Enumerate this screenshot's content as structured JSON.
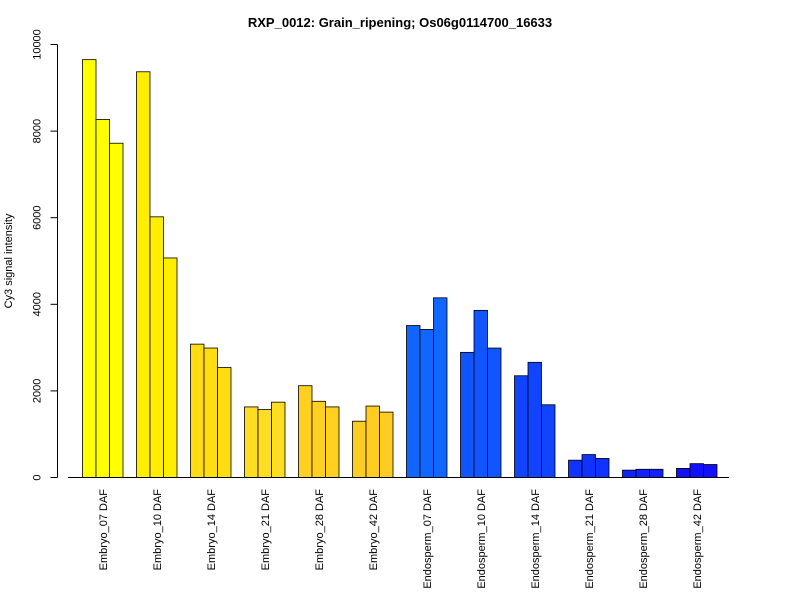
{
  "chart_data": {
    "type": "bar",
    "title": "RXP_0012: Grain_ripening; Os06g0114700_16633",
    "xlabel": "",
    "ylabel": "Cy3 signal intensity",
    "ylim": [
      0,
      10000
    ],
    "yticks": [
      0,
      2000,
      4000,
      6000,
      8000,
      10000
    ],
    "grid": false,
    "legend": "none",
    "categories": [
      "Embryo_07 DAF",
      "Embryo_10 DAF",
      "Embryo_14 DAF",
      "Embryo_21 DAF",
      "Embryo_28 DAF",
      "Embryo_42 DAF",
      "Endosperm_07 DAF",
      "Endosperm_10 DAF",
      "Endosperm_14 DAF",
      "Endosperm_21 DAF",
      "Endosperm_28 DAF",
      "Endosperm_42 DAF"
    ],
    "replicates": [
      [
        9650,
        8270,
        7720
      ],
      [
        9370,
        6020,
        5070
      ],
      [
        3080,
        2990,
        2540
      ],
      [
        1630,
        1570,
        1740
      ],
      [
        2120,
        1760,
        1630
      ],
      [
        1300,
        1650,
        1510
      ],
      [
        3510,
        3420,
        4150
      ],
      [
        2890,
        3860,
        2990
      ],
      [
        2350,
        2660,
        1680
      ],
      [
        400,
        530,
        440
      ],
      [
        170,
        190,
        190
      ],
      [
        210,
        320,
        300
      ]
    ],
    "colors": [
      "#FFFF00",
      "#FFEE00",
      "#FFDD11",
      "#FFDD22",
      "#FFD020",
      "#FFCC22",
      "#1166FF",
      "#1155FF",
      "#1144FF",
      "#1133FF",
      "#1122FF",
      "#1111FF"
    ]
  }
}
